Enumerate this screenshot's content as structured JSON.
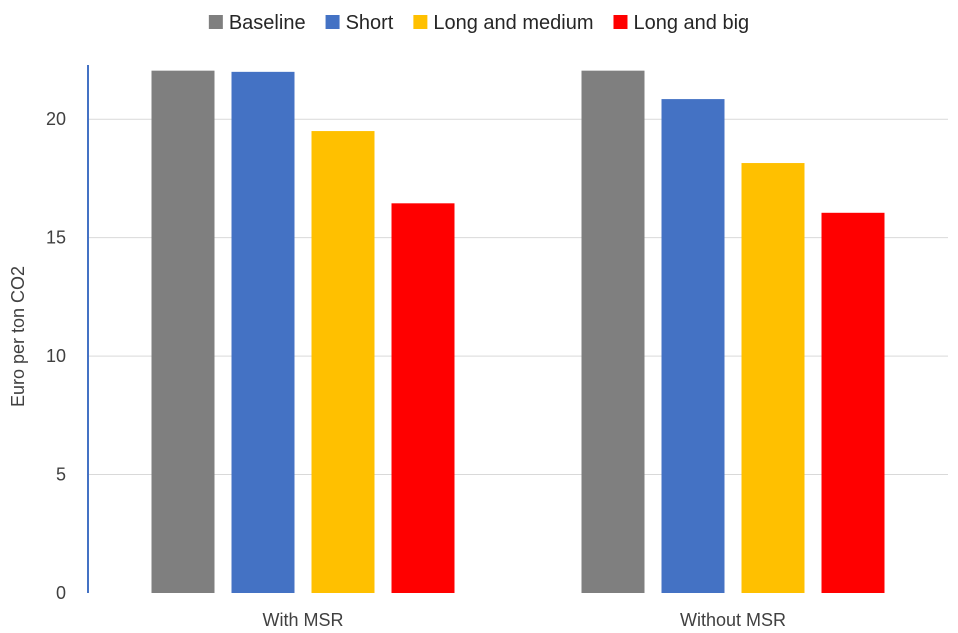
{
  "chart_data": {
    "type": "bar",
    "title": "",
    "xlabel": "",
    "ylabel": "Euro per ton CO2",
    "ylim": [
      0,
      22.5
    ],
    "yticks": [
      0,
      5,
      10,
      15,
      20
    ],
    "categories": [
      "With MSR",
      "Without MSR"
    ],
    "grid": true,
    "legend": "top-center",
    "series": [
      {
        "name": "Baseline",
        "color": "#7f7f7f",
        "values": [
          22.05,
          22.05
        ]
      },
      {
        "name": "Short",
        "color": "#4472c4",
        "values": [
          22.0,
          20.85
        ]
      },
      {
        "name": "Long and medium",
        "color": "#ffc000",
        "values": [
          19.5,
          18.15
        ]
      },
      {
        "name": "Long and big",
        "color": "#ff0000",
        "values": [
          16.45,
          16.05
        ]
      }
    ]
  }
}
